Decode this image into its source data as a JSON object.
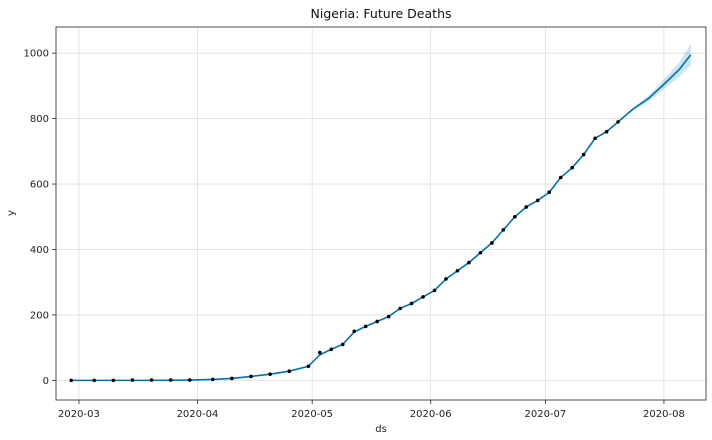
{
  "chart_data": {
    "type": "line",
    "title": "Nigeria: Future Deaths",
    "xlabel": "ds",
    "ylabel": "y",
    "x_tick_labels": [
      "2020-03",
      "2020-04",
      "2020-05",
      "2020-06",
      "2020-07",
      "2020-08"
    ],
    "y_tick_labels": [
      "0",
      "200",
      "400",
      "600",
      "800",
      "1000"
    ],
    "y_ticks": [
      0,
      200,
      400,
      600,
      800,
      1000
    ],
    "ylim": [
      -60,
      1080
    ],
    "xlim": [
      "2020-02-24",
      "2020-08-12"
    ],
    "grid": true,
    "colors": {
      "forecast": "#0072B2",
      "interval": "#0072B2",
      "observed": "#000000"
    },
    "series": [
      {
        "kind": "observed",
        "x": [
          "2020-02-28",
          "2020-03-05",
          "2020-03-10",
          "2020-03-15",
          "2020-03-20",
          "2020-03-25",
          "2020-03-30",
          "2020-04-05",
          "2020-04-10",
          "2020-04-15",
          "2020-04-20",
          "2020-04-25",
          "2020-04-30",
          "2020-05-03",
          "2020-05-06",
          "2020-05-09",
          "2020-05-12",
          "2020-05-15",
          "2020-05-18",
          "2020-05-21",
          "2020-05-24",
          "2020-05-27",
          "2020-05-30",
          "2020-06-02",
          "2020-06-05",
          "2020-06-08",
          "2020-06-11",
          "2020-06-14",
          "2020-06-17",
          "2020-06-20",
          "2020-06-23",
          "2020-06-26",
          "2020-06-29",
          "2020-07-02",
          "2020-07-05",
          "2020-07-08",
          "2020-07-11",
          "2020-07-14",
          "2020-07-17",
          "2020-07-20"
        ],
        "values": [
          0,
          0,
          0,
          1,
          1,
          1,
          1,
          3,
          6,
          12,
          19,
          28,
          43,
          85,
          95,
          110,
          150,
          165,
          180,
          195,
          220,
          235,
          255,
          275,
          310,
          335,
          360,
          390,
          420,
          460,
          500,
          530,
          550,
          575,
          620,
          650,
          690,
          740,
          760,
          790
        ]
      },
      {
        "kind": "forecast",
        "x": [
          "2020-02-28",
          "2020-03-10",
          "2020-03-20",
          "2020-03-30",
          "2020-04-05",
          "2020-04-10",
          "2020-04-15",
          "2020-04-20",
          "2020-04-25",
          "2020-04-30",
          "2020-05-03",
          "2020-05-06",
          "2020-05-09",
          "2020-05-12",
          "2020-05-15",
          "2020-05-18",
          "2020-05-21",
          "2020-05-24",
          "2020-05-27",
          "2020-05-30",
          "2020-06-02",
          "2020-06-05",
          "2020-06-08",
          "2020-06-11",
          "2020-06-14",
          "2020-06-17",
          "2020-06-20",
          "2020-06-23",
          "2020-06-26",
          "2020-06-29",
          "2020-07-02",
          "2020-07-05",
          "2020-07-08",
          "2020-07-11",
          "2020-07-14",
          "2020-07-17",
          "2020-07-20",
          "2020-07-24",
          "2020-07-28",
          "2020-08-01",
          "2020-08-05",
          "2020-08-08"
        ],
        "values": [
          0,
          0,
          0,
          1,
          3,
          6,
          12,
          19,
          28,
          43,
          78,
          95,
          110,
          148,
          165,
          180,
          195,
          220,
          235,
          255,
          275,
          310,
          335,
          360,
          390,
          420,
          460,
          500,
          530,
          550,
          575,
          620,
          650,
          690,
          740,
          760,
          790,
          830,
          862,
          905,
          950,
          995
        ],
        "lower": [
          0,
          0,
          0,
          1,
          3,
          6,
          12,
          19,
          28,
          43,
          78,
          95,
          110,
          148,
          165,
          180,
          195,
          220,
          235,
          255,
          275,
          310,
          335,
          360,
          390,
          420,
          460,
          500,
          530,
          550,
          575,
          620,
          650,
          690,
          740,
          760,
          790,
          826,
          853,
          890,
          928,
          962
        ],
        "upper": [
          0,
          0,
          0,
          1,
          3,
          6,
          12,
          19,
          28,
          43,
          78,
          95,
          110,
          148,
          165,
          180,
          195,
          220,
          235,
          255,
          275,
          310,
          335,
          360,
          390,
          420,
          460,
          500,
          530,
          550,
          575,
          620,
          650,
          690,
          740,
          760,
          790,
          834,
          870,
          920,
          972,
          1028
        ]
      }
    ]
  }
}
